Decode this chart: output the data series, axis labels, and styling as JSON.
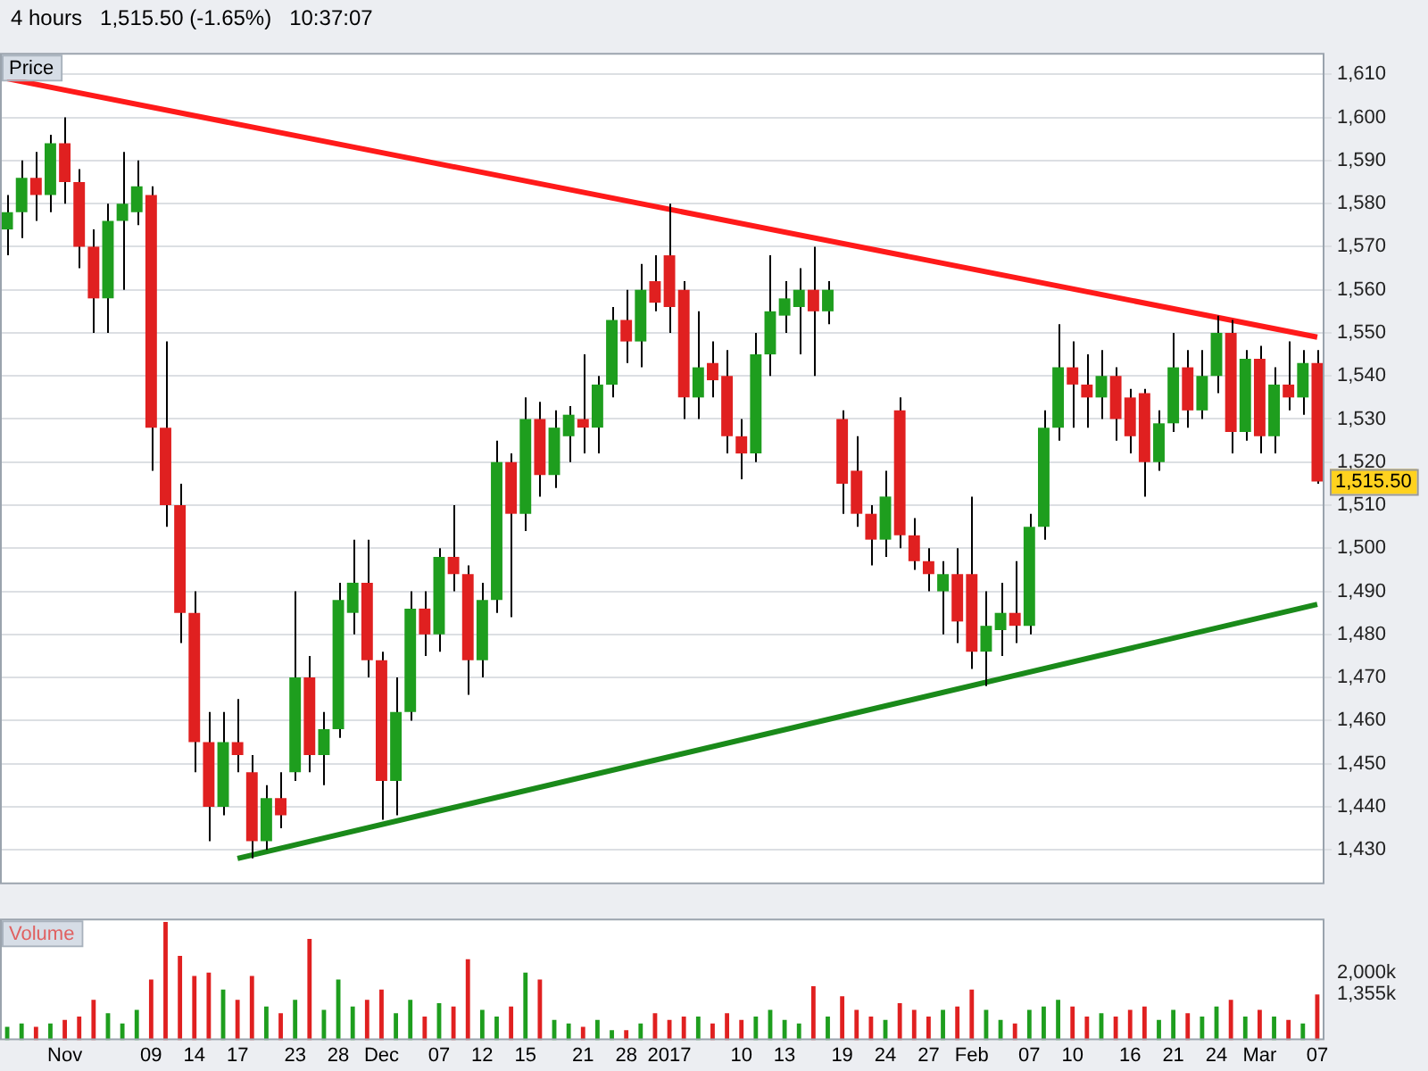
{
  "chart_data": [
    {
      "type": "candlestick",
      "title": "4 hours   1,515.50 (-1.65%)   10:37:07",
      "ylabel": "Price",
      "ohlc": [
        [
          1574,
          1582,
          1568,
          1578
        ],
        [
          1578,
          1590,
          1572,
          1586
        ],
        [
          1586,
          1592,
          1576,
          1582
        ],
        [
          1582,
          1596,
          1578,
          1594
        ],
        [
          1594,
          1600,
          1580,
          1585
        ],
        [
          1585,
          1588,
          1565,
          1570
        ],
        [
          1570,
          1574,
          1550,
          1558
        ],
        [
          1558,
          1580,
          1550,
          1576
        ],
        [
          1576,
          1592,
          1560,
          1580
        ],
        [
          1578,
          1590,
          1575,
          1584
        ],
        [
          1582,
          1584,
          1518,
          1528
        ],
        [
          1528,
          1548,
          1505,
          1510
        ],
        [
          1510,
          1515,
          1478,
          1485
        ],
        [
          1485,
          1490,
          1448,
          1455
        ],
        [
          1455,
          1462,
          1432,
          1440
        ],
        [
          1440,
          1462,
          1438,
          1455
        ],
        [
          1455,
          1465,
          1448,
          1452
        ],
        [
          1448,
          1452,
          1428,
          1432
        ],
        [
          1432,
          1445,
          1430,
          1442
        ],
        [
          1442,
          1448,
          1435,
          1438
        ],
        [
          1448,
          1490,
          1446,
          1470
        ],
        [
          1470,
          1475,
          1448,
          1452
        ],
        [
          1452,
          1462,
          1445,
          1458
        ],
        [
          1458,
          1492,
          1456,
          1488
        ],
        [
          1485,
          1502,
          1480,
          1492
        ],
        [
          1492,
          1502,
          1470,
          1474
        ],
        [
          1474,
          1476,
          1437,
          1446
        ],
        [
          1446,
          1470,
          1438,
          1462
        ],
        [
          1462,
          1490,
          1460,
          1486
        ],
        [
          1486,
          1490,
          1475,
          1480
        ],
        [
          1480,
          1500,
          1476,
          1498
        ],
        [
          1498,
          1510,
          1490,
          1494
        ],
        [
          1494,
          1496,
          1466,
          1474
        ],
        [
          1474,
          1492,
          1470,
          1488
        ],
        [
          1488,
          1525,
          1485,
          1520
        ],
        [
          1520,
          1522,
          1484,
          1508
        ],
        [
          1508,
          1535,
          1504,
          1530
        ],
        [
          1530,
          1534,
          1512,
          1517
        ],
        [
          1517,
          1532,
          1514,
          1528
        ],
        [
          1526,
          1533,
          1520,
          1531
        ],
        [
          1530,
          1545,
          1522,
          1528
        ],
        [
          1528,
          1540,
          1522,
          1538
        ],
        [
          1538,
          1556,
          1535,
          1553
        ],
        [
          1553,
          1560,
          1543,
          1548
        ],
        [
          1548,
          1566,
          1542,
          1560
        ],
        [
          1562,
          1568,
          1555,
          1557
        ],
        [
          1568,
          1580,
          1550,
          1556
        ],
        [
          1560,
          1562,
          1530,
          1535
        ],
        [
          1535,
          1555,
          1530,
          1542
        ],
        [
          1543,
          1548,
          1535,
          1539
        ],
        [
          1540,
          1546,
          1522,
          1526
        ],
        [
          1526,
          1530,
          1516,
          1522
        ],
        [
          1522,
          1550,
          1520,
          1545
        ],
        [
          1545,
          1568,
          1540,
          1555
        ],
        [
          1554,
          1562,
          1550,
          1558
        ],
        [
          1556,
          1565,
          1545,
          1560
        ],
        [
          1560,
          1570,
          1540,
          1555
        ],
        [
          1555,
          1562,
          1552,
          1560
        ],
        [
          1530,
          1532,
          1508,
          1515
        ],
        [
          1518,
          1526,
          1505,
          1508
        ],
        [
          1508,
          1510,
          1496,
          1502
        ],
        [
          1502,
          1518,
          1498,
          1512
        ],
        [
          1532,
          1535,
          1500,
          1503
        ],
        [
          1503,
          1507,
          1495,
          1497
        ],
        [
          1497,
          1500,
          1490,
          1494
        ],
        [
          1490,
          1497,
          1480,
          1494
        ],
        [
          1494,
          1500,
          1478,
          1483
        ],
        [
          1494,
          1512,
          1472,
          1476
        ],
        [
          1476,
          1490,
          1468,
          1482
        ],
        [
          1481,
          1492,
          1475,
          1485
        ],
        [
          1485,
          1497,
          1478,
          1482
        ],
        [
          1482,
          1508,
          1480,
          1505
        ],
        [
          1505,
          1532,
          1502,
          1528
        ],
        [
          1528,
          1552,
          1525,
          1542
        ],
        [
          1542,
          1548,
          1528,
          1538
        ],
        [
          1538,
          1545,
          1528,
          1535
        ],
        [
          1535,
          1546,
          1530,
          1540
        ],
        [
          1540,
          1542,
          1525,
          1530
        ],
        [
          1535,
          1537,
          1522,
          1526
        ],
        [
          1536,
          1537,
          1512,
          1520
        ],
        [
          1520,
          1532,
          1518,
          1529
        ],
        [
          1529,
          1550,
          1527,
          1542
        ],
        [
          1542,
          1546,
          1528,
          1532
        ],
        [
          1532,
          1546,
          1530,
          1540
        ],
        [
          1540,
          1554,
          1536,
          1550
        ],
        [
          1550,
          1553,
          1522,
          1527
        ],
        [
          1527,
          1546,
          1525,
          1544
        ],
        [
          1544,
          1547,
          1522,
          1526
        ],
        [
          1526,
          1542,
          1522,
          1538
        ],
        [
          1538,
          1548,
          1532,
          1535
        ],
        [
          1535,
          1546,
          1531,
          1543
        ],
        [
          1543,
          1546,
          1515,
          1515.5
        ]
      ],
      "colors": [
        "#1e9e1e",
        "#1e9e1e",
        "#e02020",
        "#1e9e1e",
        "#e02020",
        "#e02020",
        "#e02020",
        "#1e9e1e",
        "#1e9e1e",
        "#1e9e1e",
        "#e02020",
        "#e02020",
        "#e02020",
        "#e02020",
        "#e02020",
        "#1e9e1e",
        "#e02020",
        "#e02020",
        "#1e9e1e",
        "#e02020",
        "#1e9e1e",
        "#e02020",
        "#1e9e1e",
        "#1e9e1e",
        "#1e9e1e",
        "#e02020",
        "#e02020",
        "#1e9e1e",
        "#1e9e1e",
        "#e02020",
        "#1e9e1e",
        "#e02020",
        "#e02020",
        "#1e9e1e",
        "#1e9e1e",
        "#e02020",
        "#1e9e1e",
        "#e02020",
        "#1e9e1e",
        "#1e9e1e",
        "#e02020",
        "#1e9e1e",
        "#1e9e1e",
        "#e02020",
        "#1e9e1e",
        "#e02020",
        "#e02020",
        "#e02020",
        "#1e9e1e",
        "#e02020",
        "#e02020",
        "#e02020",
        "#1e9e1e",
        "#1e9e1e",
        "#1e9e1e",
        "#1e9e1e",
        "#e02020",
        "#1e9e1e",
        "#e02020",
        "#e02020",
        "#e02020",
        "#1e9e1e",
        "#e02020",
        "#e02020",
        "#e02020",
        "#1e9e1e",
        "#e02020",
        "#e02020",
        "#1e9e1e",
        "#1e9e1e",
        "#e02020",
        "#1e9e1e",
        "#1e9e1e",
        "#1e9e1e",
        "#e02020",
        "#e02020",
        "#1e9e1e",
        "#e02020",
        "#e02020",
        "#e02020",
        "#1e9e1e",
        "#1e9e1e",
        "#e02020",
        "#1e9e1e",
        "#1e9e1e",
        "#e02020",
        "#1e9e1e",
        "#e02020",
        "#1e9e1e",
        "#e02020",
        "#1e9e1e",
        "#e02020"
      ],
      "series": [
        {
          "type": "line",
          "color": "#ff1a1a",
          "values": [
            1609,
            null,
            null,
            null,
            null,
            null,
            null,
            null,
            null,
            null,
            null,
            null,
            null,
            null,
            null,
            null,
            null,
            null,
            null,
            null,
            null,
            null,
            null,
            null,
            null,
            null,
            null,
            null,
            null,
            null,
            null,
            null,
            null,
            null,
            null,
            null,
            null,
            null,
            null,
            null,
            null,
            null,
            null,
            null,
            null,
            null,
            null,
            null,
            null,
            null,
            null,
            null,
            null,
            null,
            null,
            null,
            null,
            null,
            null,
            null,
            null,
            null,
            null,
            null,
            null,
            null,
            null,
            null,
            null,
            null,
            null,
            null,
            null,
            null,
            null,
            null,
            null,
            null,
            null,
            null,
            null,
            null,
            null,
            null,
            null,
            null,
            null,
            null,
            null,
            null,
            null,
            1549
          ]
        },
        {
          "type": "line",
          "color": "#1a8a1a",
          "values": [
            null,
            null,
            null,
            null,
            null,
            null,
            null,
            null,
            null,
            null,
            null,
            null,
            null,
            null,
            null,
            null,
            1428,
            null,
            null,
            null,
            null,
            null,
            null,
            null,
            null,
            null,
            null,
            null,
            null,
            null,
            null,
            null,
            null,
            null,
            null,
            null,
            null,
            null,
            null,
            null,
            null,
            null,
            null,
            null,
            null,
            null,
            null,
            null,
            null,
            null,
            null,
            null,
            null,
            null,
            null,
            null,
            null,
            null,
            null,
            null,
            null,
            null,
            null,
            null,
            null,
            null,
            null,
            null,
            null,
            null,
            null,
            null,
            null,
            null,
            null,
            null,
            null,
            null,
            null,
            null,
            null,
            null,
            null,
            null,
            null,
            null,
            null,
            null,
            null,
            null,
            null,
            1487
          ]
        }
      ],
      "ylim": [
        1422,
        1615
      ],
      "yticks": [
        {
          "value": 1430,
          "label": "1,430"
        },
        {
          "value": 1440,
          "label": "1,440"
        },
        {
          "value": 1450,
          "label": "1,450"
        },
        {
          "value": 1460,
          "label": "1,460"
        },
        {
          "value": 1470,
          "label": "1,470"
        },
        {
          "value": 1480,
          "label": "1,480"
        },
        {
          "value": 1490,
          "label": "1,490"
        },
        {
          "value": 1500,
          "label": "1,500"
        },
        {
          "value": 1510,
          "label": "1,510"
        },
        {
          "value": 1520,
          "label": "1,520"
        },
        {
          "value": 1530,
          "label": "1,530"
        },
        {
          "value": 1540,
          "label": "1,540"
        },
        {
          "value": 1550,
          "label": "1,550"
        },
        {
          "value": 1560,
          "label": "1,560"
        },
        {
          "value": 1570,
          "label": "1,570"
        },
        {
          "value": 1580,
          "label": "1,580"
        },
        {
          "value": 1590,
          "label": "1,590"
        },
        {
          "value": 1600,
          "label": "1,600"
        },
        {
          "value": 1610,
          "label": "1,610"
        }
      ],
      "grid": "y",
      "tick_labels": "y",
      "annotations": [
        "1,515.50"
      ]
    },
    {
      "type": "bar",
      "ylabel": "Volume",
      "categories": [
        null,
        null,
        null,
        null,
        "Nov",
        null,
        null,
        null,
        null,
        null,
        "09",
        null,
        null,
        "14",
        null,
        null,
        "17",
        null,
        null,
        null,
        "23",
        null,
        null,
        "28",
        null,
        null,
        "Dec",
        null,
        null,
        null,
        "07",
        null,
        null,
        "12",
        null,
        null,
        "15",
        null,
        null,
        null,
        "21",
        null,
        null,
        "28",
        null,
        null,
        "2017",
        null,
        null,
        null,
        null,
        "10",
        null,
        null,
        "13",
        null,
        null,
        null,
        "19",
        null,
        null,
        "24",
        null,
        null,
        "27",
        null,
        null,
        "Feb",
        null,
        null,
        null,
        "07",
        null,
        null,
        "10",
        null,
        null,
        null,
        "16",
        null,
        null,
        "21",
        null,
        null,
        "24",
        null,
        null,
        "Mar",
        null,
        null,
        null,
        "07"
      ],
      "values": [
        400,
        500,
        400,
        500,
        600,
        700,
        1200,
        800,
        500,
        900,
        1800,
        3500,
        2500,
        1900,
        2000,
        1500,
        1200,
        1900,
        1000,
        800,
        1200,
        3000,
        900,
        1800,
        1000,
        1200,
        1500,
        800,
        1200,
        700,
        1100,
        1000,
        2400,
        900,
        700,
        1000,
        2000,
        1800,
        600,
        500,
        400,
        600,
        300,
        300,
        500,
        800,
        600,
        700,
        700,
        500,
        800,
        600,
        700,
        900,
        600,
        500,
        1600,
        700,
        1300,
        900,
        700,
        600,
        1100,
        900,
        700,
        900,
        1000,
        1500,
        900,
        600,
        500,
        900,
        1000,
        1200,
        1000,
        700,
        800,
        700,
        900,
        1000,
        600,
        900,
        800,
        700,
        1000,
        1200,
        700,
        900,
        700,
        600,
        500,
        1355
      ],
      "colors": [
        "#1e9e1e",
        "#1e9e1e",
        "#e02020",
        "#1e9e1e",
        "#e02020",
        "#e02020",
        "#e02020",
        "#1e9e1e",
        "#1e9e1e",
        "#1e9e1e",
        "#e02020",
        "#e02020",
        "#e02020",
        "#e02020",
        "#e02020",
        "#1e9e1e",
        "#e02020",
        "#e02020",
        "#1e9e1e",
        "#e02020",
        "#1e9e1e",
        "#e02020",
        "#1e9e1e",
        "#1e9e1e",
        "#1e9e1e",
        "#e02020",
        "#e02020",
        "#1e9e1e",
        "#1e9e1e",
        "#e02020",
        "#1e9e1e",
        "#e02020",
        "#e02020",
        "#1e9e1e",
        "#1e9e1e",
        "#e02020",
        "#1e9e1e",
        "#e02020",
        "#1e9e1e",
        "#1e9e1e",
        "#e02020",
        "#1e9e1e",
        "#1e9e1e",
        "#e02020",
        "#1e9e1e",
        "#e02020",
        "#e02020",
        "#e02020",
        "#1e9e1e",
        "#e02020",
        "#e02020",
        "#e02020",
        "#1e9e1e",
        "#1e9e1e",
        "#1e9e1e",
        "#1e9e1e",
        "#e02020",
        "#1e9e1e",
        "#e02020",
        "#e02020",
        "#e02020",
        "#1e9e1e",
        "#e02020",
        "#e02020",
        "#e02020",
        "#1e9e1e",
        "#e02020",
        "#e02020",
        "#1e9e1e",
        "#1e9e1e",
        "#e02020",
        "#1e9e1e",
        "#1e9e1e",
        "#1e9e1e",
        "#e02020",
        "#e02020",
        "#1e9e1e",
        "#e02020",
        "#e02020",
        "#e02020",
        "#1e9e1e",
        "#1e9e1e",
        "#e02020",
        "#1e9e1e",
        "#1e9e1e",
        "#e02020",
        "#1e9e1e",
        "#e02020",
        "#1e9e1e",
        "#e02020",
        "#1e9e1e",
        "#e02020"
      ],
      "ylim": [
        0,
        3600
      ],
      "yticks": [
        {
          "value": 1355,
          "label": "1,355k"
        },
        {
          "value": 2000,
          "label": "2,000k"
        }
      ]
    }
  ]
}
